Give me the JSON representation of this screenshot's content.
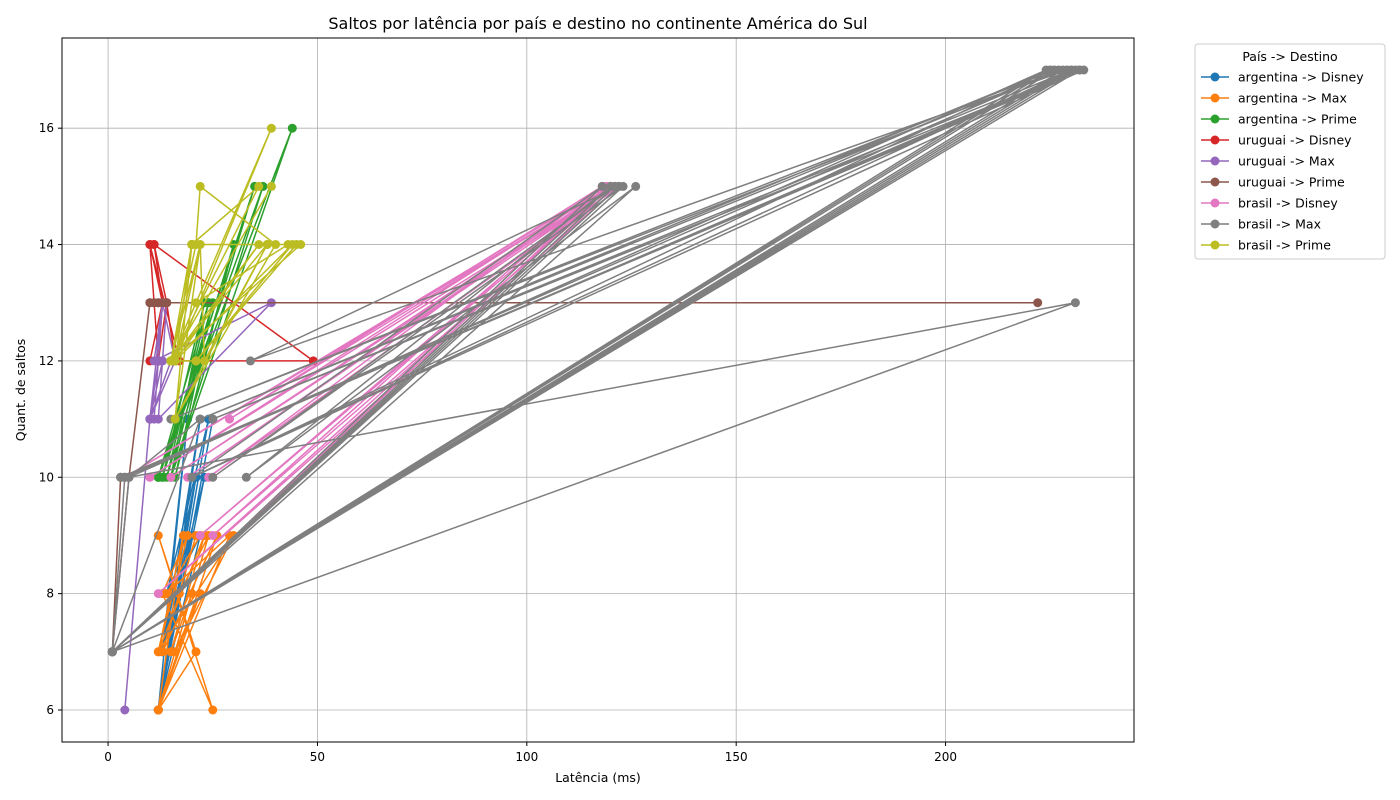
{
  "chart_data": {
    "type": "line",
    "title": "Saltos por latência por país e destino no continente América do Sul",
    "xlabel": "Latência (ms)",
    "ylabel": "Quant. de saltos",
    "xlim": [
      -11,
      245
    ],
    "ylim": [
      5.45,
      17.55
    ],
    "xticks": [
      0,
      50,
      100,
      150,
      200
    ],
    "yticks": [
      6,
      8,
      10,
      12,
      14,
      16
    ],
    "grid": true,
    "legend": {
      "title": "País -> Destino",
      "placement": "outside-top-right"
    },
    "series": [
      {
        "name": "argentina -> Disney",
        "color": "#1f77b4",
        "x": [
          12,
          22,
          13,
          21,
          12,
          24,
          14,
          20,
          12,
          23,
          13,
          19,
          12,
          22,
          15,
          21,
          12,
          25
        ],
        "y": [
          6,
          11,
          7,
          10,
          6,
          11,
          8,
          9,
          6,
          10,
          7,
          11,
          6,
          9,
          8,
          10,
          6,
          11
        ]
      },
      {
        "name": "argentina -> Max",
        "color": "#ff7f0e",
        "x": [
          12,
          21,
          12,
          25,
          13,
          19,
          12,
          30,
          16,
          22,
          12,
          24,
          17,
          21,
          13,
          26,
          12,
          20,
          15,
          23,
          12,
          18,
          12,
          29,
          14,
          22
        ],
        "y": [
          6,
          7,
          9,
          6,
          8,
          9,
          7,
          9,
          7,
          8,
          6,
          9,
          8,
          9,
          7,
          9,
          6,
          8,
          7,
          9,
          7,
          9,
          6,
          9,
          8,
          9
        ]
      },
      {
        "name": "argentina -> Prime",
        "color": "#2ca02c",
        "x": [
          13,
          23,
          15,
          44,
          12,
          24,
          14,
          35,
          12,
          22,
          16,
          30,
          13,
          25,
          15,
          37,
          12,
          24
        ],
        "y": [
          10,
          13,
          10,
          16,
          10,
          13,
          10,
          15,
          10,
          12,
          10,
          14,
          10,
          13,
          10,
          15,
          10,
          13
        ]
      },
      {
        "name": "uruguai -> Disney",
        "color": "#d62728",
        "x": [
          10,
          13,
          11,
          14,
          12,
          17,
          10,
          13,
          12,
          49,
          11,
          14,
          12,
          13,
          10,
          12,
          14,
          16
        ],
        "y": [
          12,
          13,
          14,
          13,
          12,
          12,
          14,
          13,
          12,
          12,
          14,
          13,
          12,
          13,
          14,
          12,
          13,
          12
        ]
      },
      {
        "name": "uruguai -> Max",
        "color": "#9467bd",
        "x": [
          4,
          10,
          12,
          11,
          13,
          16,
          10,
          13,
          14,
          12,
          39,
          11,
          13,
          10,
          15
        ],
        "y": [
          6,
          11,
          12,
          11,
          13,
          12,
          11,
          12,
          13,
          11,
          13,
          12,
          13,
          11,
          12
        ]
      },
      {
        "name": "uruguai -> Prime",
        "color": "#8c564b",
        "x": [
          3,
          1,
          5,
          10,
          13,
          11,
          222,
          12,
          14,
          10,
          12,
          11
        ],
        "y": [
          10,
          7,
          10,
          13,
          13,
          13,
          13,
          13,
          13,
          13,
          13,
          13
        ]
      },
      {
        "name": "brasil -> Disney",
        "color": "#e377c2",
        "x": [
          1,
          119,
          4,
          120,
          15,
          121,
          25,
          118,
          29,
          120,
          19,
          121,
          10,
          119,
          22,
          120,
          12,
          122,
          24,
          118
        ],
        "y": [
          7,
          15,
          10,
          15,
          10,
          15,
          9,
          15,
          11,
          15,
          10,
          15,
          10,
          15,
          9,
          15,
          8,
          15,
          10,
          15
        ]
      },
      {
        "name": "brasil -> Max",
        "color": "#7f7f7f",
        "x": [
          1,
          4,
          1,
          5,
          224,
          1,
          226,
          15,
          228,
          1,
          230,
          25,
          232,
          3,
          233,
          20,
          230,
          1,
          225,
          22,
          227,
          4,
          231,
          1,
          229,
          34,
          122,
          1,
          126,
          33,
          120,
          1,
          121,
          25,
          123,
          1,
          231,
          5,
          22,
          1,
          118,
          20,
          225,
          1,
          232
        ],
        "y": [
          7,
          10,
          7,
          10,
          17,
          7,
          17,
          11,
          17,
          7,
          17,
          11,
          17,
          10,
          17,
          10,
          17,
          7,
          17,
          11,
          17,
          10,
          17,
          7,
          17,
          12,
          15,
          7,
          15,
          10,
          15,
          7,
          15,
          10,
          15,
          7,
          13,
          10,
          11,
          7,
          15,
          10,
          17,
          7,
          17
        ]
      },
      {
        "name": "brasil -> Prime",
        "color": "#bcbd22",
        "x": [
          15,
          20,
          16,
          39,
          15,
          21,
          22,
          40,
          16,
          20,
          15,
          36,
          20,
          46,
          15,
          22,
          16,
          38,
          15,
          20,
          45,
          21,
          16,
          36,
          15,
          21,
          43,
          20,
          16,
          22,
          23,
          38,
          15,
          20,
          16,
          44,
          21,
          15,
          39
        ],
        "y": [
          12,
          14,
          12,
          16,
          12,
          14,
          15,
          14,
          11,
          14,
          12,
          15,
          14,
          14,
          12,
          14,
          11,
          14,
          12,
          14,
          14,
          12,
          12,
          14,
          12,
          13,
          14,
          14,
          12,
          14,
          12,
          14,
          12,
          14,
          12,
          14,
          12,
          12,
          15
        ]
      }
    ]
  }
}
